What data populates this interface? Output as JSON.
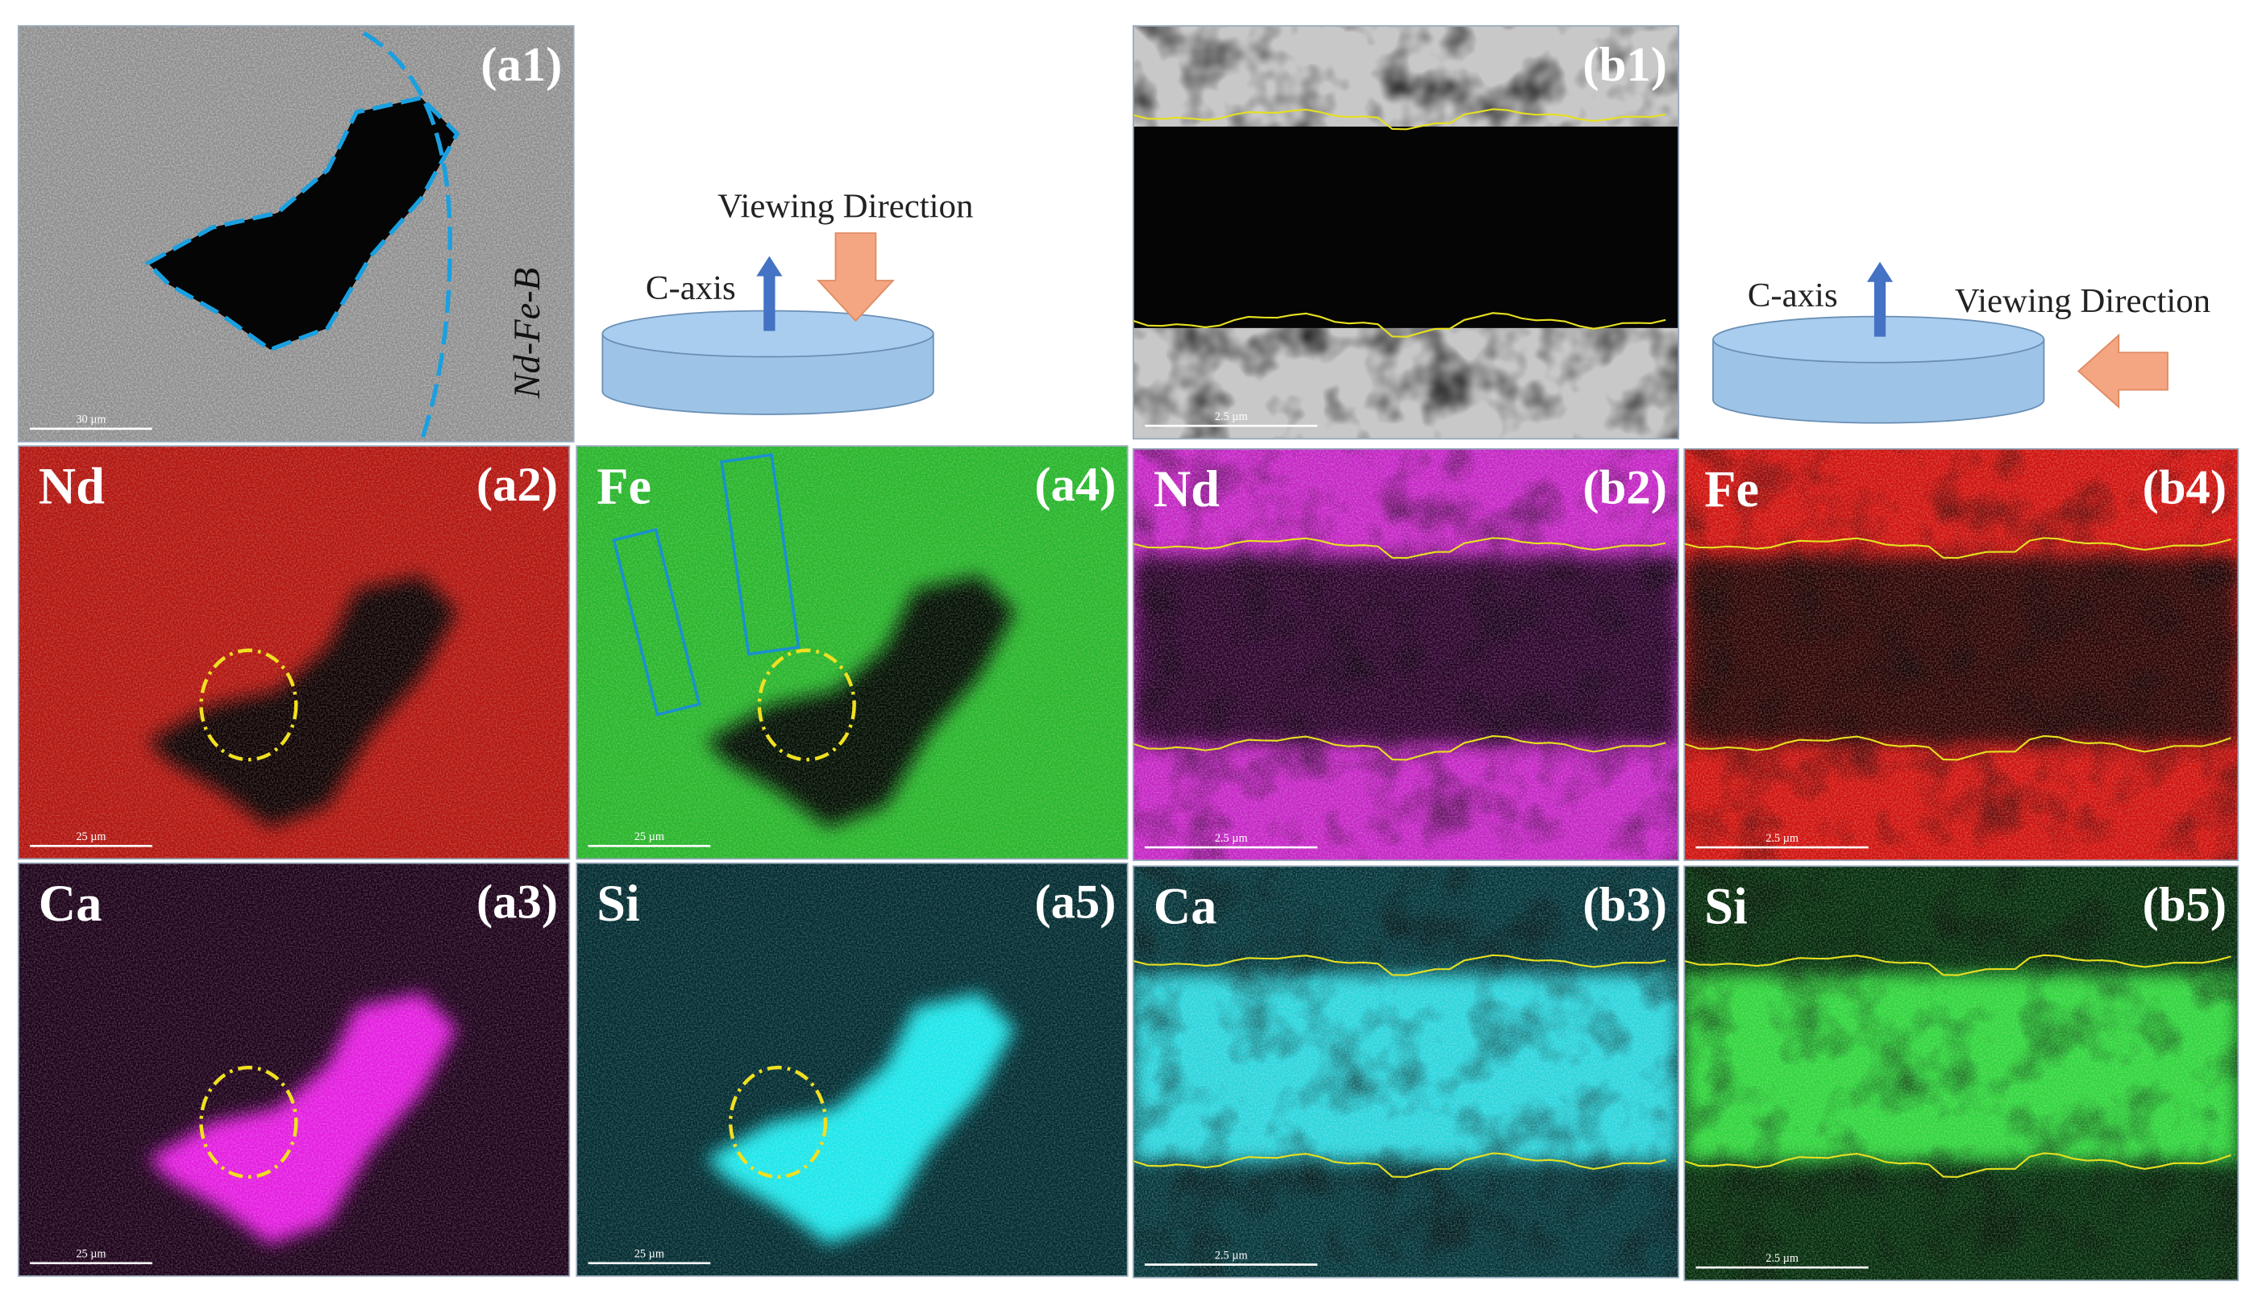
{
  "panels": [
    {
      "label": "(a1)",
      "scale": "30 µm"
    },
    {
      "label": "(b1)",
      "scale": "2.5 µm"
    },
    {
      "label": "(a2)",
      "element": "Nd",
      "scale": "25 µm"
    },
    {
      "label": "(a4)",
      "element": "Fe",
      "scale": "25 µm"
    },
    {
      "label": "(b2)",
      "element": "Nd",
      "scale": "2.5 µm"
    },
    {
      "label": "(b4)",
      "element": "Fe",
      "scale": "2.5 µm"
    },
    {
      "label": "(a3)",
      "element": "Ca",
      "scale": "25 µm"
    },
    {
      "label": "(a5)",
      "element": "Si",
      "scale": "25 µm"
    },
    {
      "label": "(b3)",
      "element": "Ca",
      "scale": "2.5 µm"
    },
    {
      "label": "(b5)",
      "element": "Si",
      "scale": "2.5 µm"
    }
  ],
  "sample_label": "Nd-Fe-B",
  "diagrams": [
    {
      "c_axis": "C-axis",
      "viewing": "Viewing Direction"
    },
    {
      "c_axis": "C-axis",
      "viewing": "Viewing Direction"
    }
  ]
}
